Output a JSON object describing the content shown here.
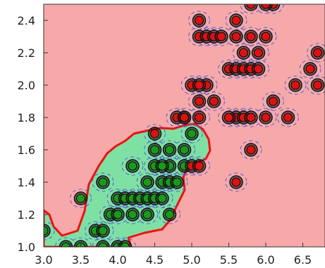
{
  "chart_data": {
    "type": "scatter",
    "title": "",
    "xlabel": "",
    "ylabel": "",
    "xlim": [
      3.0,
      6.8
    ],
    "ylim": [
      1.0,
      2.5
    ],
    "x_ticks": [
      "3.0",
      "3.5",
      "4.0",
      "4.5",
      "5.0",
      "5.5",
      "6.0",
      "6.5"
    ],
    "y_ticks": [
      "1.0",
      "1.2",
      "1.4",
      "1.6",
      "1.8",
      "2.0",
      "2.2",
      "2.4"
    ],
    "grid": false,
    "legend": "none",
    "background_color": "#f7a9a9",
    "region_color": "#7fe0a4",
    "boundary_color": "#ee1111",
    "series": [
      {
        "color": "#1a9a1a",
        "points": [
          [
            3.0,
            1.1
          ],
          [
            3.3,
            1.0
          ],
          [
            3.5,
            1.0
          ],
          [
            3.8,
            1.0
          ],
          [
            4.0,
            1.0
          ],
          [
            4.1,
            1.0
          ],
          [
            3.7,
            1.1
          ],
          [
            3.8,
            1.1
          ],
          [
            3.5,
            1.3
          ],
          [
            3.9,
            1.2
          ],
          [
            4.0,
            1.2
          ],
          [
            4.2,
            1.2
          ],
          [
            4.4,
            1.2
          ],
          [
            4.7,
            1.2
          ],
          [
            3.8,
            1.4
          ],
          [
            4.0,
            1.3
          ],
          [
            4.1,
            1.3
          ],
          [
            4.2,
            1.3
          ],
          [
            4.3,
            1.3
          ],
          [
            4.4,
            1.3
          ],
          [
            4.5,
            1.3
          ],
          [
            4.6,
            1.3
          ],
          [
            4.2,
            1.5
          ],
          [
            4.4,
            1.4
          ],
          [
            4.5,
            1.5
          ],
          [
            4.6,
            1.4
          ],
          [
            4.7,
            1.4
          ],
          [
            4.7,
            1.5
          ],
          [
            4.8,
            1.4
          ],
          [
            4.9,
            1.5
          ],
          [
            4.5,
            1.6
          ],
          [
            4.7,
            1.6
          ],
          [
            4.9,
            1.6
          ],
          [
            5.0,
            1.7
          ],
          [
            4.6,
            1.5
          ]
        ]
      },
      {
        "color": "#dd1111",
        "points": [
          [
            4.5,
            1.7
          ],
          [
            4.8,
            1.8
          ],
          [
            4.9,
            1.8
          ],
          [
            5.0,
            1.5
          ],
          [
            5.1,
            1.5
          ],
          [
            5.1,
            1.9
          ],
          [
            5.2,
            2.0
          ],
          [
            5.3,
            1.9
          ],
          [
            5.0,
            2.0
          ],
          [
            5.1,
            2.0
          ],
          [
            4.9,
            1.8
          ],
          [
            5.1,
            1.8
          ],
          [
            5.6,
            1.4
          ],
          [
            5.6,
            1.8
          ],
          [
            5.7,
            1.8
          ],
          [
            5.8,
            1.8
          ],
          [
            6.0,
            1.8
          ],
          [
            6.3,
            1.8
          ],
          [
            5.5,
            2.1
          ],
          [
            5.6,
            2.1
          ],
          [
            5.7,
            2.1
          ],
          [
            5.8,
            2.1
          ],
          [
            5.9,
            2.1
          ],
          [
            6.6,
            2.1
          ],
          [
            5.7,
            2.2
          ],
          [
            5.6,
            2.4
          ],
          [
            5.1,
            2.3
          ],
          [
            5.2,
            2.3
          ],
          [
            5.3,
            2.3
          ],
          [
            5.4,
            2.3
          ],
          [
            5.6,
            2.3
          ],
          [
            5.8,
            2.3
          ],
          [
            6.0,
            2.3
          ],
          [
            5.1,
            2.4
          ],
          [
            5.8,
            2.5
          ],
          [
            6.1,
            2.5
          ],
          [
            6.0,
            2.5
          ],
          [
            6.7,
            2.2
          ],
          [
            6.7,
            2.0
          ],
          [
            6.4,
            2.0
          ],
          [
            5.8,
            1.6
          ],
          [
            6.1,
            1.9
          ],
          [
            5.9,
            2.2
          ],
          [
            5.5,
            1.8
          ]
        ]
      }
    ]
  }
}
